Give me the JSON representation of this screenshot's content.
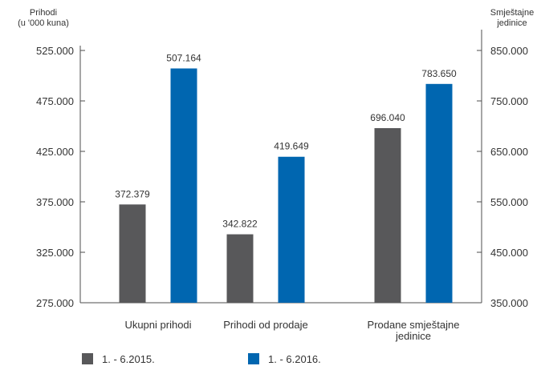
{
  "chart_data": {
    "type": "bar",
    "categories": [
      [
        "Ukupni prihodi"
      ],
      [
        "Prihodi od prodaje"
      ],
      [
        "Prodane smještajne",
        "jedinice"
      ]
    ],
    "series": [
      {
        "name": "1. - 6.2015.",
        "color": "#58585a",
        "values": [
          372379,
          342822,
          696040
        ],
        "labels": [
          "372.379",
          "342.822",
          "696.040"
        ],
        "axis": [
          "left",
          "left",
          "right"
        ]
      },
      {
        "name": "1. - 6.2016.",
        "color": "#0066b0",
        "values": [
          507164,
          419649,
          783650
        ],
        "labels": [
          "507.164",
          "419.649",
          "783.650"
        ],
        "axis": [
          "left",
          "left",
          "right"
        ]
      }
    ],
    "left_axis": {
      "title": [
        "Prihodi",
        "(u '000 kuna)"
      ],
      "ylim": [
        275000,
        525000
      ],
      "ticks": [
        275000,
        325000,
        375000,
        425000,
        475000,
        525000
      ],
      "tick_labels": [
        "275.000",
        "325.000",
        "375.000",
        "425.000",
        "475.000",
        "525.000"
      ]
    },
    "right_axis": {
      "title": [
        "Smještajne",
        "jedinice"
      ],
      "ylim": [
        350000,
        850000
      ],
      "ticks": [
        350000,
        450000,
        550000,
        650000,
        750000,
        850000
      ],
      "tick_labels": [
        "350.000",
        "450.000",
        "550.000",
        "650.000",
        "750.000",
        "850.000"
      ]
    },
    "grid": false,
    "legend_position": "bottom-left"
  }
}
